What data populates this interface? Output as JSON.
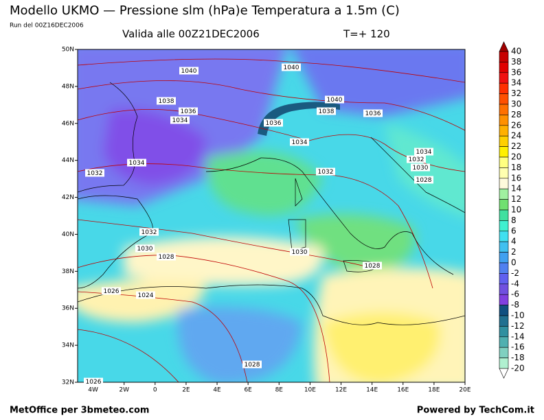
{
  "header": {
    "title": "Modello UKMO — Pressione slm (hPa)e Temperatura a 1.5m (C)",
    "run": "Run del 00Z16DEC2006",
    "valid": "Valida alle 00Z21DEC2006",
    "step": "T=+ 120"
  },
  "map": {
    "lon_ticks": [
      {
        "value": -4,
        "label": "4W"
      },
      {
        "value": -2,
        "label": "2W"
      },
      0,
      {
        "value": 2,
        "label": "2E"
      },
      {
        "value": 4,
        "label": "4E"
      },
      {
        "value": 6,
        "label": "6E"
      },
      {
        "value": 8,
        "label": "8E"
      },
      {
        "value": 10,
        "label": "10E"
      },
      {
        "value": 12,
        "label": "12E"
      },
      {
        "value": 14,
        "label": "14E"
      },
      {
        "value": 16,
        "label": "16E"
      },
      {
        "value": 18,
        "label": "18E"
      },
      {
        "value": 20,
        "label": "20E"
      }
    ],
    "lat_ticks": [
      {
        "value": 50,
        "label": "50N"
      },
      {
        "value": 48,
        "label": "48N"
      },
      {
        "value": 46,
        "label": "46N"
      },
      {
        "value": 44,
        "label": "44N"
      },
      {
        "value": 42,
        "label": "42N"
      },
      {
        "value": 40,
        "label": "40N"
      },
      {
        "value": 38,
        "label": "38N"
      },
      {
        "value": 36,
        "label": "36N"
      },
      {
        "value": 34,
        "label": "34N"
      },
      {
        "value": 32,
        "label": "32N"
      }
    ],
    "lonlim": [
      -5,
      20
    ],
    "latlim": [
      32,
      50
    ],
    "isobar_labels": [
      1040,
      1040,
      1040,
      1038,
      1036,
      1034,
      1036,
      1038,
      1036,
      1034,
      1034,
      1032,
      1030,
      1028,
      1034,
      1032,
      1032,
      1032,
      1030,
      1028,
      1030,
      1028,
      1026,
      1024,
      1028,
      1026
    ]
  },
  "colorbar": {
    "levels": [
      40,
      38,
      36,
      34,
      32,
      30,
      28,
      26,
      24,
      22,
      20,
      18,
      16,
      14,
      12,
      10,
      8,
      6,
      4,
      2,
      0,
      -2,
      -4,
      -6,
      -8,
      -10,
      -12,
      -14,
      -16,
      -18,
      -20
    ],
    "colors": [
      "#a00000",
      "#c80000",
      "#e00000",
      "#f01010",
      "#ff3000",
      "#ff5000",
      "#ff7000",
      "#ff9000",
      "#ffb000",
      "#ffd000",
      "#fff000",
      "#ffff80",
      "#ffffb0",
      "#fffadc",
      "#a0f0a0",
      "#70e070",
      "#40e0a0",
      "#40f0d0",
      "#40e0f0",
      "#40c0f0",
      "#40a0f0",
      "#5080f0",
      "#6060f0",
      "#7050e0",
      "#8040e0",
      "#105080",
      "#207090",
      "#3090a0",
      "#50b0b0",
      "#80d0c0",
      "#b0f0d0",
      "#ffffff"
    ]
  },
  "footer": {
    "left": "MetOffice per 3bmeteo.com",
    "right": "Powered by TechCom.it"
  }
}
